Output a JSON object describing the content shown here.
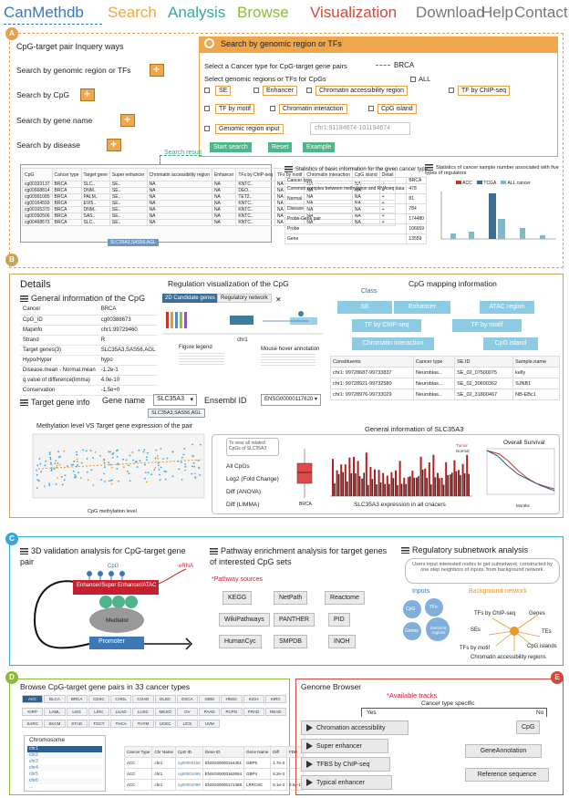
{
  "nav": {
    "brand": "CanMethdb",
    "search": "Search",
    "analysis": "Analysis",
    "browse": "Browse",
    "visualization": "Visualization",
    "download": "Download",
    "help": "Help",
    "contact": "Contact"
  },
  "colors": {
    "panelA": "#e3a24b",
    "panelB": "#c9a35a",
    "panelC": "#3aa6d8",
    "panelD": "#8bbb3a",
    "panelE": "#d24a3a"
  },
  "panelA": {
    "badge": "A",
    "title": "CpG-target pair Inquery ways",
    "ways": [
      "Search by genomic region or TFs",
      "Search by CpG",
      "Search by gene name",
      "Search by disease"
    ],
    "search_header": "Search by genomic region or TFs",
    "cancer_prompt": "Select a Cancer type for CpG-target gene pairs",
    "cancer_value": "BRCA",
    "region_prompt": "Select genomic regions or TFs for CpGs",
    "all_label": "ALL",
    "options": [
      "SE",
      "Enhancer",
      "Chromatin accessibility region",
      "TF by ChIP-seq",
      "TF by motif",
      "Chromatin interaction",
      "CpG island",
      "Genomic region input"
    ],
    "region_placeholder": "chr1:91194674-101194674",
    "buttons": [
      "Start search",
      "Reset",
      "Example"
    ],
    "search_result": "Search result",
    "result_headers": [
      "CpG",
      "Cancer type",
      "Target gene",
      "Super enhancer",
      "Chromatin accessibility region",
      "Enhancer",
      "TFs by ChIP-seq",
      "TFs by motif",
      "Chromatin interaction",
      "CpG island",
      "Detail"
    ],
    "result_cpgs": [
      "cg00333137",
      "cg00668814",
      "cg00991085",
      "cg00164593",
      "cg00165370",
      "cg00350506",
      "cg00468573"
    ],
    "stats_title": "Statistics of basic information for the given cancer type",
    "stats_rows": [
      [
        "Cancer type",
        "BRCA"
      ],
      [
        "Common samples between methylation and RNAseq data",
        "478"
      ],
      [
        "Normal",
        "81"
      ],
      [
        "Disease",
        "784"
      ],
      [
        "Probe-Gene pair",
        "174480"
      ],
      [
        "Probe",
        "106659"
      ],
      [
        "Gene",
        "13559"
      ]
    ],
    "stats2_title": "Statistics of cancer sample number associated with five types of regulators",
    "legend": [
      "ACC",
      "TCGA",
      "ALL cancer"
    ],
    "gene_tag": "SLC35A3,SAS56,AGL"
  },
  "panelB": {
    "badge": "B",
    "title": "Details",
    "general_title": "General information of the CpG",
    "general_rows": [
      [
        "Cancer",
        "BRCA"
      ],
      [
        "CpG_ID",
        "cg00388673"
      ],
      [
        "Mapinfo",
        "chr1:99729460"
      ],
      [
        "Strand",
        "R"
      ],
      [
        "Target genes(3)",
        "SLC35A3,SAS56,AGL"
      ],
      [
        "Hypo/Hyper",
        "hypo"
      ],
      [
        "Disease.mean - Normal.mean",
        "-1.2e-1"
      ],
      [
        "q.value of difference(limma)",
        "4.0e-10"
      ],
      [
        "Conservation",
        "-1.5e+0"
      ]
    ],
    "regviz_title": "Regulation visualization of the CpG",
    "reg_tabs": [
      "2D Candidate genes",
      "Regulatory network"
    ],
    "chr_label": "chr1",
    "figure_legend": "Figure legend",
    "mouse_hover": "Mouse hover annotation",
    "mapping_title": "CpG mapping information",
    "class_label": "Class",
    "classes": [
      "SE",
      "Enhancer",
      "ATAC region",
      "TF by ChIP-seq",
      "TF by motif",
      "Chromatin interaction",
      "CpG island"
    ],
    "map_headers": [
      "Constituents",
      "Cancer type",
      "SE.ID",
      "Sample.name"
    ],
    "map_rows": [
      [
        "chr1: 99728687-99733837",
        "Neuroblas...",
        "SE_02_07500075",
        "kelly"
      ],
      [
        "chr1: 99728921-99732580",
        "Neuroblas...",
        "SE_02_30600362",
        "SJNB1"
      ],
      [
        "chr1: 99728976-99733029",
        "Neuroblas...",
        "SE_02_31800467",
        "NB-EBc1"
      ]
    ],
    "target_title": "Target gene info",
    "gene_name_label": "Gene name",
    "gene_name_value": "SLC35A3",
    "ensembl_label": "Ensembl ID",
    "ensembl_value": "ENSG00000117620",
    "gene_tag": "SLC35A3,SAS56,AGL",
    "scatter_title": "Methylation level VS Target gene expression of the pair",
    "scatter_x": "CpG methylation level",
    "scatter_y": "Target gene expression",
    "general_slc": "General information of SLC35A3",
    "view_all": "To view all related CpGs of SLC35A3",
    "metrics": [
      "All CpGs",
      "Log2 (Fold Change)",
      "Diff (ANOVA)",
      "Diff (LIMMA)"
    ],
    "box_label": "BRCA",
    "bars_label": "SLC35A3 expression in all cnacers",
    "tumor_normal": [
      "Tumor",
      "Normal"
    ],
    "survival_title": "Overall Survival",
    "survival_x": "Months",
    "survival_y": "Percent survival"
  },
  "panelC": {
    "badge": "C",
    "validation_title": "3D validation analysis for CpG-target gene pair",
    "cpg_label": "CpG",
    "erna_label": "eRNA",
    "enhancer_label": "Enhancer/Super Enhancer/ATAC",
    "tf_label": "TF",
    "mediator_label": "Mediator",
    "promoter_label": "Promoter",
    "pathway_title": "Pathway enrichment analysis for target genes of interested CpG sets",
    "pathway_sources_label": "*Pathway sources",
    "pathways": [
      "KEGG",
      "NetPath",
      "Reactome",
      "WikiPathways",
      "PANTHER",
      "PID",
      "HumanCyc",
      "SMPDB",
      "INOH"
    ],
    "subnet_title": "Regulatory subnetwork analysis",
    "subnet_desc": "Users input interested nodes to get subnetwork, constructed by one step neighbors of inputs, from background network.",
    "inputs_label": "Inputs",
    "background_label": "Background network",
    "inputs": [
      "CpG",
      "TFs",
      "Genes",
      "Genomic regions"
    ],
    "bg_nodes": [
      "TFs by ChIP-seq",
      "Genes",
      "SEs",
      "TEs",
      "TFs by motif",
      "CpG islands",
      "Chromatin accessibility regions"
    ]
  },
  "panelD": {
    "badge": "D",
    "title": "Browse CpG-target gene pairs in 33 cancer types",
    "cancers": [
      "ACC",
      "BLCA",
      "BRCA",
      "CESC",
      "CHOL",
      "COAD",
      "DLBC",
      "ESCA",
      "GBM",
      "HNSC",
      "KICH",
      "KIRC",
      "KIRP",
      "LAML",
      "LGG",
      "LIHC",
      "LUAD",
      "LUSC",
      "MESO",
      "OV",
      "PAAD",
      "PCPG",
      "PRAD",
      "READ",
      "SARC",
      "SKCM",
      "STAD",
      "TGCT",
      "THCA",
      "THYM",
      "UCEC",
      "UCS",
      "UVM"
    ],
    "chromosome_label": "Chromosome",
    "chromosomes": [
      "chr1",
      "chr2",
      "chr3",
      "chr4",
      "chr5",
      "chr6",
      "..."
    ],
    "table_headers": [
      "Cancer Type",
      "Chr Name",
      "CpG ID",
      "Gene ID",
      "Gene Name",
      "Target Gene",
      "Diff",
      "FDR",
      "q"
    ],
    "table_rows": [
      [
        "ACC",
        "chr1",
        "cg00000165",
        "ENSG00000154451",
        "GBP5",
        "1.7e-3",
        "",
        "",
        ""
      ],
      [
        "ACC",
        "chr1",
        "cg00001099",
        "ENSG00000162654",
        "GBP4",
        "8.2e-3",
        "",
        "",
        ""
      ],
      [
        "ACC",
        "chr1",
        "cg00001099",
        "ENSG00000171488",
        "LRRC8C",
        "6.1e-3",
        "2.5e-1",
        "3.0e-2",
        ""
      ]
    ]
  },
  "panelE": {
    "badge": "E",
    "title": "Genome Browser",
    "available": "*Available tracks",
    "specific": "Cancer type specific",
    "yes": "Yes",
    "no": "No",
    "yes_tracks": [
      "Chromation accessibility",
      "Super enhancer",
      "TFBS by ChIP-seq",
      "Typical enhancer"
    ],
    "no_tracks": [
      "CpG",
      "GeneAnnotation",
      "Reference sequence"
    ]
  }
}
